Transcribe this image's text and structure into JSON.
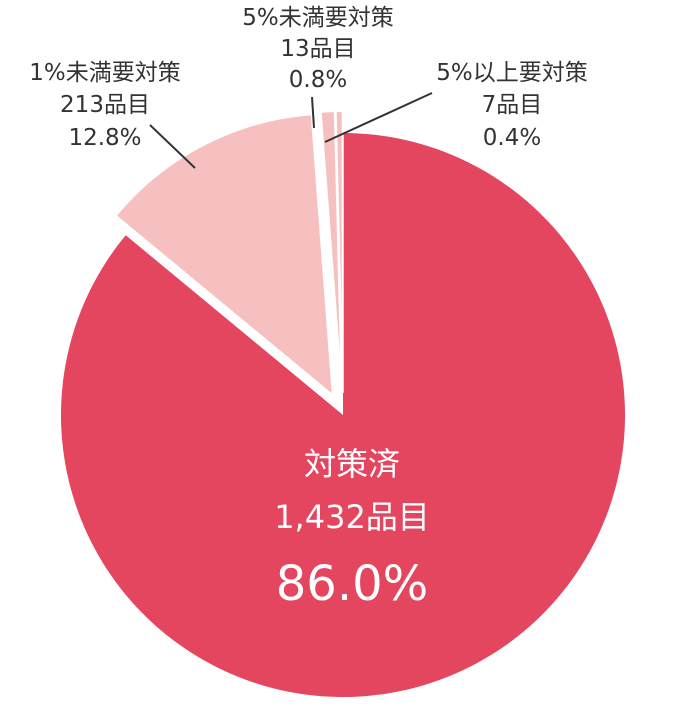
{
  "chart_data": {
    "type": "pie",
    "slices": [
      {
        "name": "対策済",
        "count": "1,432品目",
        "percent": "86.0%",
        "value": 86.0,
        "color": "#e4455f"
      },
      {
        "name": "1%未満要対策",
        "count": "213品目",
        "percent": "12.8%",
        "value": 12.8,
        "color": "#f5c0bf"
      },
      {
        "name": "5%未満要対策",
        "count": "13品目",
        "percent": "0.8%",
        "value": 0.8,
        "color": "#f5c0bf"
      },
      {
        "name": "5%以上要対策",
        "count": "7品目",
        "percent": "0.4%",
        "value": 0.4,
        "color": "#f5c0bf"
      }
    ],
    "title": "",
    "legend": "none"
  }
}
